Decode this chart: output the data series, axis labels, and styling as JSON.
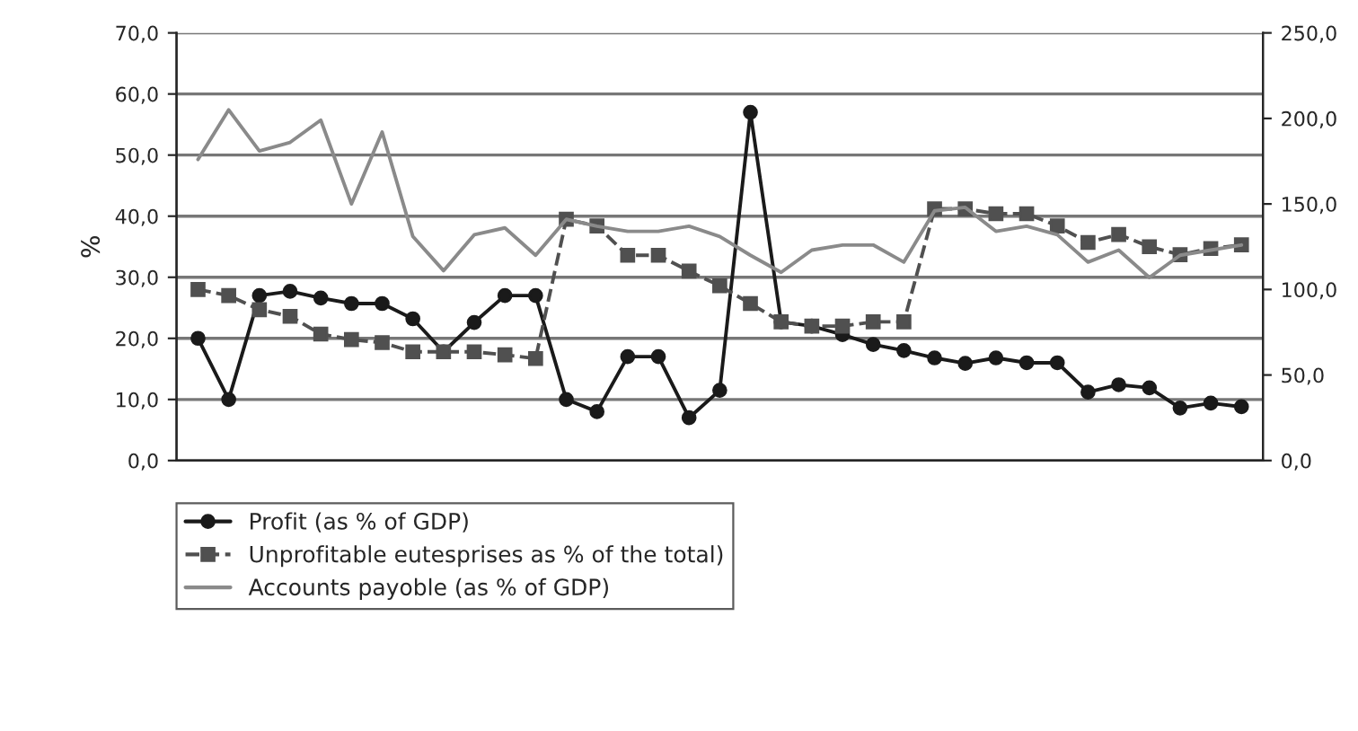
{
  "chart_data": {
    "type": "line",
    "ylabel": "%",
    "categories": [
      null,
      null,
      null,
      null,
      null,
      null,
      null,
      null,
      null,
      null,
      null,
      null,
      null,
      null,
      null,
      null,
      null,
      null,
      null,
      null,
      null,
      null,
      null,
      null,
      null,
      null,
      null,
      null,
      null,
      null,
      null,
      null,
      null,
      null,
      null
    ],
    "series": [
      {
        "name": "Profit (as % of GDP)",
        "color": "#1a1a1a",
        "marker": "circle",
        "line_style": "solid",
        "values": [
          20,
          10,
          27,
          27.7,
          26.6,
          25.7,
          25.7,
          23.2,
          17.8,
          22.6,
          27,
          27,
          10,
          8,
          17,
          17,
          7,
          11.5,
          57,
          22.7,
          22,
          20.6,
          19,
          18,
          16.8,
          15.9,
          16.8,
          16,
          16,
          11.2,
          12.4,
          11.9,
          8.6,
          9.4,
          8.8
        ]
      },
      {
        "name": "Unprofitable eutesprises as % of the total)",
        "color": "#505050",
        "marker": "square",
        "line_style": "dashed",
        "values": [
          28,
          27,
          24.7,
          23.6,
          20.7,
          19.8,
          19.3,
          17.8,
          17.8,
          17.8,
          17.3,
          16.7,
          39.5,
          38.4,
          33.6,
          33.6,
          31,
          28.6,
          25.7,
          22.7,
          22,
          22,
          22.7,
          22.7,
          41.2,
          41.2,
          40.4,
          40.4,
          38.4,
          35.7,
          37,
          35,
          33.7,
          34.7,
          35.3
        ]
      },
      {
        "name": "Accounts payoble (as % of GDP)",
        "color": "#8a8a8a",
        "marker": "none",
        "line_style": "solid",
        "axis": "y2",
        "values": [
          176,
          205,
          181,
          186,
          199,
          150,
          192,
          131,
          111,
          132,
          136,
          120,
          141,
          137,
          134,
          134,
          137,
          131,
          120,
          110,
          123,
          126,
          126,
          116,
          146,
          148,
          134,
          137,
          132,
          116,
          123,
          107,
          120,
          123,
          126
        ]
      }
    ],
    "ylim": [
      0,
      70
    ],
    "yticks": [
      {
        "value": 0,
        "label": "0,0"
      },
      {
        "value": 10,
        "label": "10,0"
      },
      {
        "value": 20,
        "label": "20,0"
      },
      {
        "value": 30,
        "label": "30,0"
      },
      {
        "value": 40,
        "label": "40,0"
      },
      {
        "value": 50,
        "label": "50,0"
      },
      {
        "value": 60,
        "label": "60,0"
      },
      {
        "value": 70,
        "label": "70,0"
      }
    ],
    "y2lim": [
      0,
      250
    ],
    "y2ticks": [
      {
        "value": 0,
        "label": "0,0"
      },
      {
        "value": 50,
        "label": "50,0"
      },
      {
        "value": 100,
        "label": "100,0"
      },
      {
        "value": 150,
        "label": "150,0"
      },
      {
        "value": 200,
        "label": "200,0"
      },
      {
        "value": 250,
        "label": "250,0"
      }
    ],
    "grid": "y",
    "legend": "bottom"
  }
}
